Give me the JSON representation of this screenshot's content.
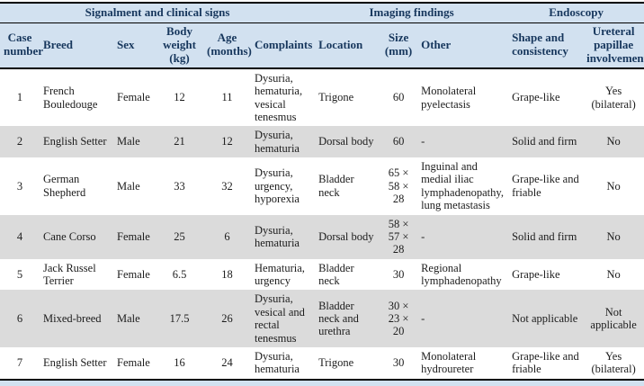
{
  "colors": {
    "header-bg": "#d2e1f0",
    "header-text": "#17375d",
    "row-alt-bg": "#dbdbdb",
    "border-color": "#000000",
    "body-text": "#1c1c1c"
  },
  "table": {
    "group_headers": [
      {
        "label": "Signalment and clinical signs",
        "colspan": 6
      },
      {
        "label": "Imaging findings",
        "colspan": 3
      },
      {
        "label": "Endoscopy",
        "colspan": 2
      }
    ],
    "columns": [
      "Case number",
      "Breed",
      "Sex",
      "Body weight (kg)",
      "Age (months)",
      "Complaints",
      "Location",
      "Size (mm)",
      "Other",
      "Shape and consistency",
      "Ureteral papillae involvement"
    ],
    "rows": [
      [
        "1",
        "French Bouledouge",
        "Female",
        "12",
        "11",
        "Dysuria, hematuria, vesical tenesmus",
        "Trigone",
        "60",
        "Monolateral pyelectasis",
        "Grape-like",
        "Yes (bilateral)"
      ],
      [
        "2",
        "English Setter",
        "Male",
        "21",
        "12",
        "Dysuria, hematuria",
        "Dorsal body",
        "60",
        "-",
        "Solid and firm",
        "No"
      ],
      [
        "3",
        "German Shepherd",
        "Male",
        "33",
        "32",
        "Dysuria, urgency, hyporexia",
        "Bladder neck",
        "65 × 58 × 28",
        "Inguinal and medial iliac lymphadenopathy, lung metastasis",
        "Grape-like and friable",
        "No"
      ],
      [
        "4",
        "Cane Corso",
        "Female",
        "25",
        "6",
        "Dysuria, hematuria",
        "Dorsal body",
        "58 × 57 × 28",
        "-",
        "Solid and firm",
        "No"
      ],
      [
        "5",
        "Jack Russel Terrier",
        "Female",
        "6.5",
        "18",
        "Hematuria, urgency",
        "Bladder neck",
        "30",
        "Regional lymphadenopathy",
        "Grape-like",
        "No"
      ],
      [
        "6",
        "Mixed-breed",
        "Male",
        "17.5",
        "26",
        "Dysuria, vesical and rectal tenesmus",
        "Bladder neck and urethra",
        "30 × 23 × 20",
        "-",
        "Not applicable",
        "Not applicable"
      ],
      [
        "7",
        "English Setter",
        "Female",
        "16",
        "24",
        "Dysuria, hematuria",
        "Trigone",
        "30",
        "Monolateral hydroureter",
        "Grape-like and friable",
        "Yes (bilateral)"
      ]
    ]
  }
}
